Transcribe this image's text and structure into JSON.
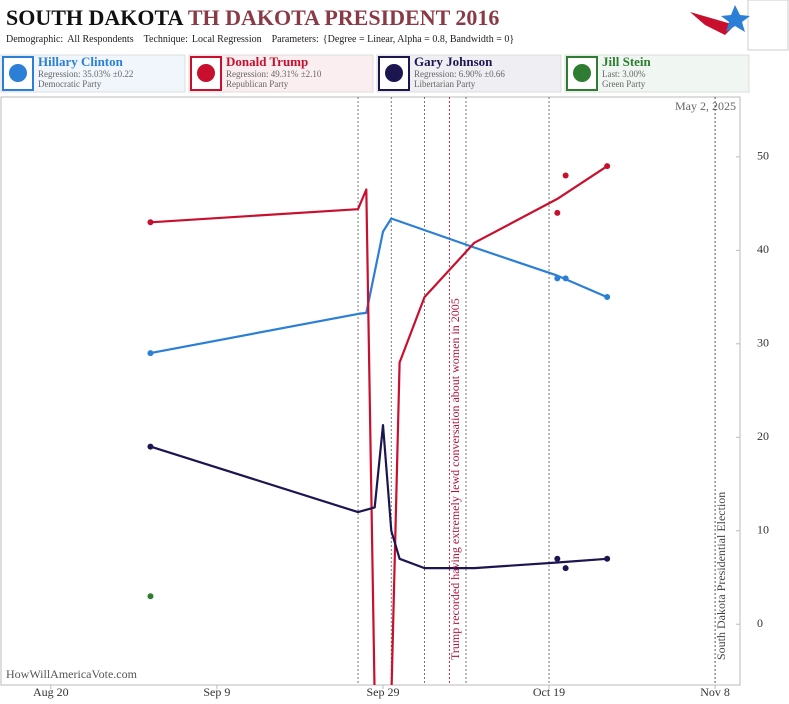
{
  "chart_data": {
    "type": "line",
    "title_main": "SOUTH DAKOTA",
    "title_rest": "TH DAKOTA PRESIDENT 2016",
    "subtitle": [
      {
        "label": "Demographic:",
        "value": "All Respondents"
      },
      {
        "label": "Technique:",
        "value": "Local Regression"
      },
      {
        "label": "Parameters:",
        "value": "{Degree = Linear, Alpha = 0.8, Bandwidth = 0}"
      }
    ],
    "date_stamp": "May 2, 2025",
    "source": "HowWillAmericaVote.com",
    "xlim": [
      "Aug 14",
      "Nov 11"
    ],
    "xticks": [
      "Aug 20",
      "Sep 9",
      "Sep 29",
      "Oct 19",
      "Nov 8"
    ],
    "ylim": [
      -6.5,
      56.4
    ],
    "yticks": [
      0,
      10,
      20,
      30,
      40,
      50
    ],
    "event_lines": [
      "Sep 26",
      "Sep 30",
      "Oct 4",
      "Oct 9",
      "Oct 19"
    ],
    "annotations": [
      {
        "x": "Oct 7",
        "text": "Trump recorded having extremely lewd conversation about women in 2005",
        "color": "#b0103a"
      },
      {
        "x": "Nov 8",
        "text": "South Dakota Presidential Election",
        "color": "#444444"
      }
    ],
    "series": [
      {
        "name": "Hillary Clinton",
        "stat": "Regression: 35.03% ±0.22",
        "party": "Democratic Party",
        "color": "#2b7fd6",
        "x": [
          "Sep 1",
          "Sep 26",
          "Sep 27",
          "Sep 29",
          "Sep 30",
          "Oct 10",
          "Oct 20",
          "Oct 26"
        ],
        "values": [
          29,
          33.2,
          33.3,
          42,
          43.4,
          40.3,
          37.3,
          35
        ],
        "poll_x": [
          "Sep 1",
          "Oct 20",
          "Oct 21",
          "Oct 26"
        ],
        "poll_values": [
          29,
          37,
          37,
          35
        ]
      },
      {
        "name": "Donald Trump",
        "stat": "Regression: 49.31% ±2.10",
        "party": "Republican Party",
        "color": "#c8102e",
        "x": [
          "Sep 1",
          "Sep 26",
          "Sep 27",
          "Sep 28",
          "Sep 30",
          "Oct 1",
          "Oct 4",
          "Oct 10",
          "Oct 20",
          "Oct 26"
        ],
        "values": [
          43,
          44.4,
          46.5,
          -8,
          -8,
          28,
          35,
          40.8,
          45.5,
          49
        ],
        "poll_x": [
          "Sep 1",
          "Oct 20",
          "Oct 21",
          "Oct 26"
        ],
        "poll_values": [
          43,
          44,
          48,
          49
        ]
      },
      {
        "name": "Gary Johnson",
        "stat": "Regression: 6.90% ±0.66",
        "party": "Libertarian Party",
        "color": "#1c1650",
        "x": [
          "Sep 1",
          "Sep 26",
          "Sep 28",
          "Sep 29",
          "Sep 30",
          "Oct 1",
          "Oct 4",
          "Oct 10",
          "Oct 20",
          "Oct 26"
        ],
        "values": [
          19,
          12,
          12.5,
          21.3,
          10,
          7,
          6,
          6,
          6.6,
          7
        ],
        "poll_x": [
          "Sep 1",
          "Oct 20",
          "Oct 21",
          "Oct 26"
        ],
        "poll_values": [
          19,
          7,
          6,
          7
        ]
      },
      {
        "name": "Jill Stein",
        "stat": "Last: 3.00%",
        "party": "Green Party",
        "color": "#2e7d32",
        "x": [],
        "values": [],
        "poll_x": [
          "Sep 1"
        ],
        "poll_values": [
          3
        ]
      }
    ]
  }
}
